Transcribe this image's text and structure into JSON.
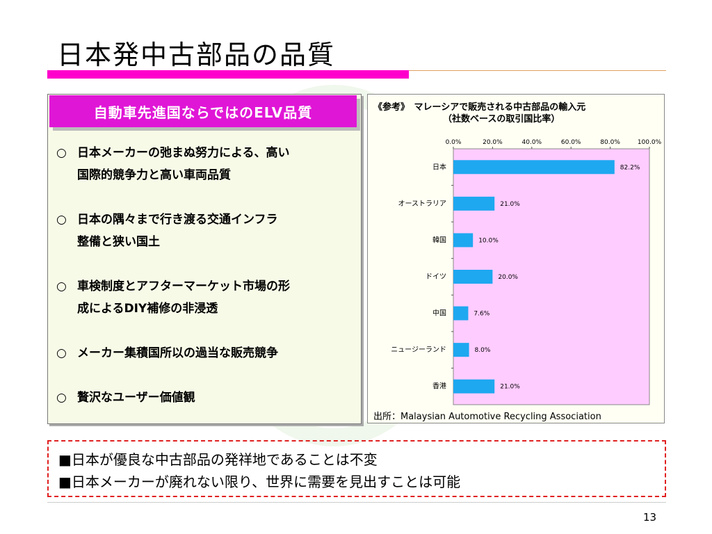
{
  "slide": {
    "title": "日本発中古部品の品質",
    "page_number": "13"
  },
  "left_panel": {
    "header": "自動車先進国ならではのELV品質",
    "bullet_mark": "○",
    "bullets": [
      {
        "line1": "日本メーカーの弛まぬ努力による、高い",
        "line2": "国際的競争力と高い車両品質"
      },
      {
        "line1": "日本の隅々まで行き渡る交通インフラ",
        "line2": "整備と狭い国土"
      },
      {
        "line1": "車検制度とアフターマーケット市場の形",
        "line2": "成によるDIY補修の非浸透"
      },
      {
        "line1": "メーカー集積国所以の過当な販売競争",
        "line2": ""
      },
      {
        "line1": "贅沢なユーザー価値観",
        "line2": ""
      }
    ]
  },
  "right_panel": {
    "ref_title_line1": "《参考》　マレーシアで販売される中古部品の輸入元",
    "ref_title_line2": "（社数ベースの取引国比率）",
    "source": "出所：Malaysian Automotive Recycling Association"
  },
  "chart_data": {
    "type": "bar",
    "orientation": "horizontal",
    "categories": [
      "日本",
      "オーストラリア",
      "韓国",
      "ドイツ",
      "中国",
      "ニュージーランド",
      "香港"
    ],
    "values": [
      82.2,
      21.0,
      10.0,
      20.0,
      7.6,
      8.0,
      21.0
    ],
    "data_labels": [
      "82.2%",
      "21.0%",
      "10.0%",
      "20.0%",
      "7.6%",
      "8.0%",
      "21.0%"
    ],
    "x_ticks": [
      "0.0%",
      "20.0%",
      "40.0%",
      "60.0%",
      "80.0%",
      "100.0%"
    ],
    "xlim": [
      0,
      100
    ],
    "axis_position": "top",
    "title": "",
    "xlabel": "",
    "ylabel": "",
    "grid": false,
    "colors": {
      "bar": "#1ea8f0",
      "plot_bg": "#ffccff"
    }
  },
  "bottom_box": {
    "line1": "■日本が優良な中古部品の発祥地であることは不変",
    "line2": "■日本メーカーが廃れない限り、世界に需要を見出すことは可能"
  },
  "colors": {
    "accent_pink": "#ff00cc",
    "header_magenta": "#e016d6",
    "dashed_red": "#e02020"
  }
}
